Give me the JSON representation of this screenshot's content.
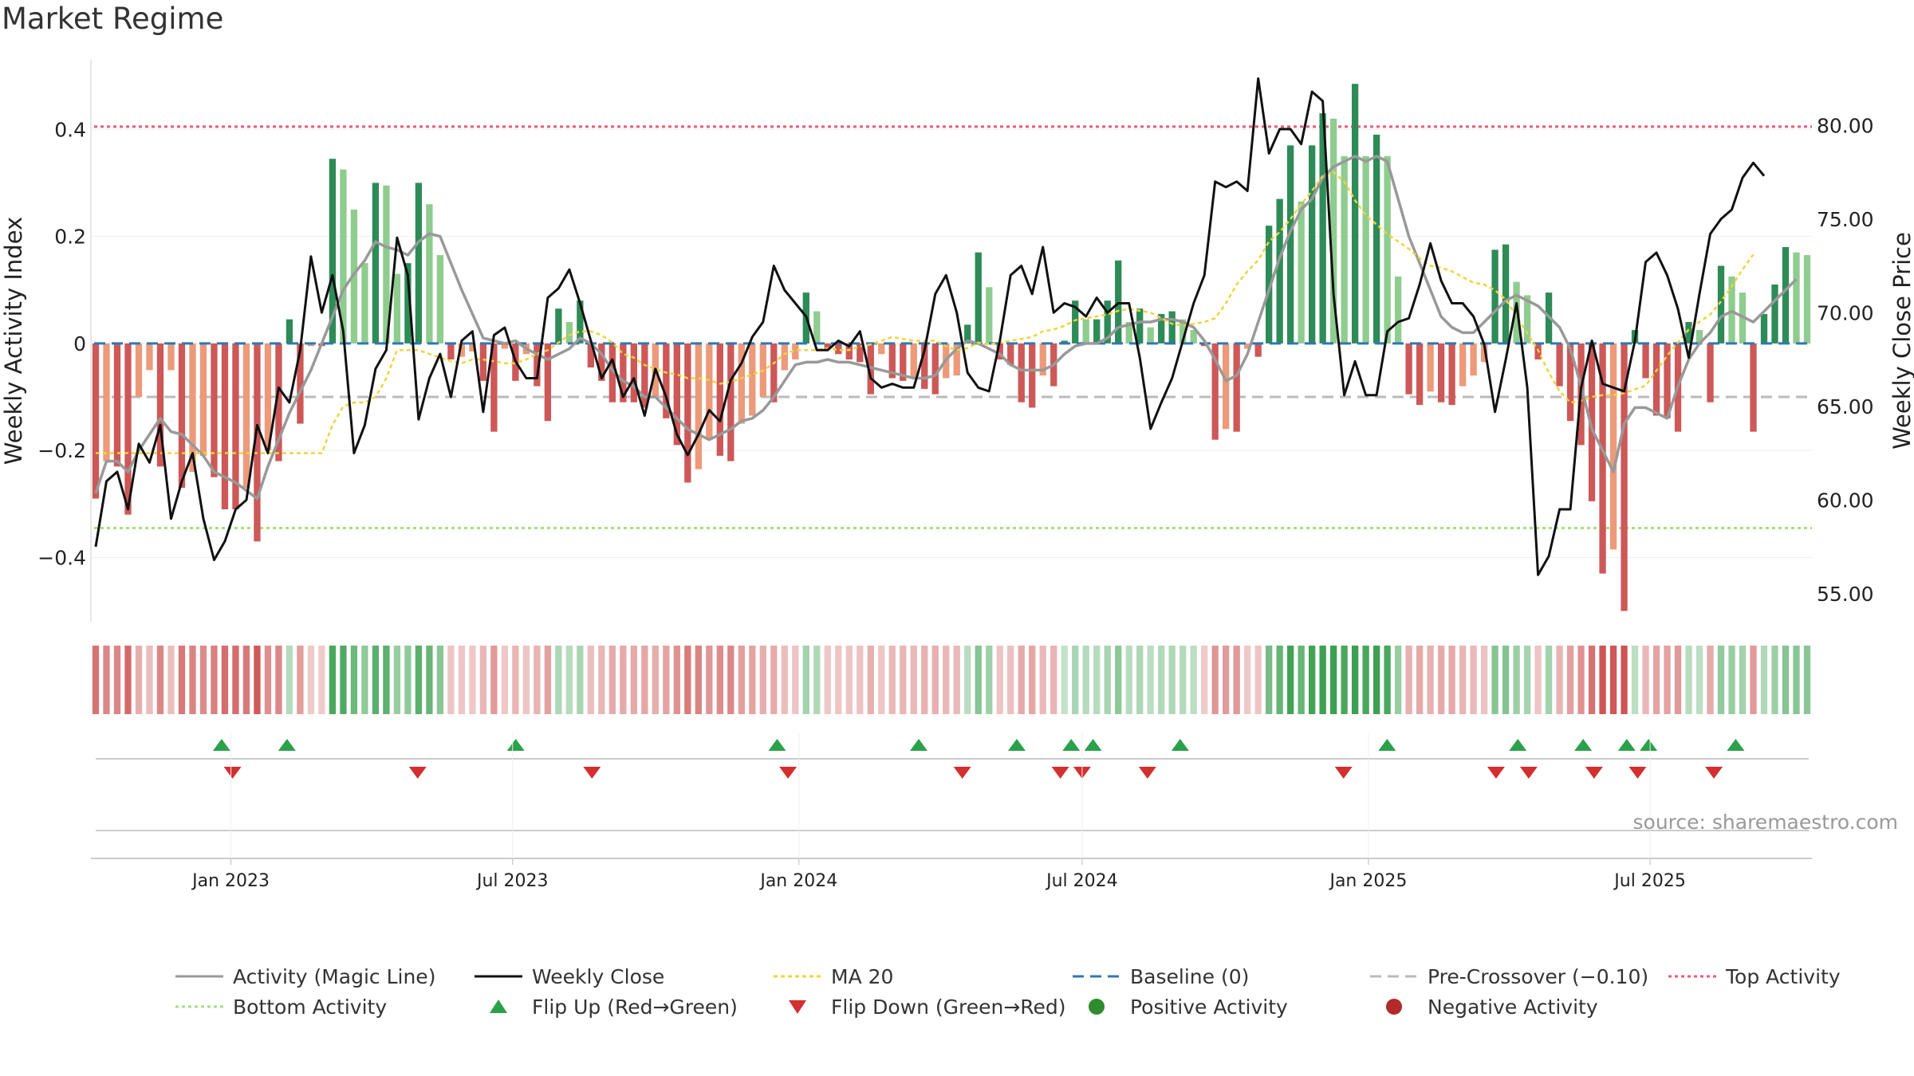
{
  "title": "Market Regime",
  "source": "source: sharemaestro.com",
  "colors": {
    "close": "#111111",
    "magic": "#999999",
    "ma": "#f2d33a",
    "baseline": "#2f78b4",
    "pre": "#bbbbbb",
    "top": "#ec5a78",
    "bottom": "#a8df7c",
    "up_strong": "#2e8b57",
    "up_weak": "#8fcc8f",
    "down_strong": "#cd5858",
    "down_weak": "#ec9a7a",
    "flip_up": "#2aa14a",
    "flip_down": "#d32f2f"
  },
  "chart_data": {
    "type": "bar",
    "title": "Market Regime",
    "ylabel": "Weekly Activity Index",
    "y2label": "Weekly Close Price",
    "ylim": [
      -0.52,
      0.53
    ],
    "y2lim": [
      53.5,
      83.5
    ],
    "yticks": [
      -0.4,
      -0.2,
      0,
      0.2,
      0.4
    ],
    "ytick_labels": [
      "−0.4",
      "−0.2",
      "0",
      "0.2",
      "0.4"
    ],
    "y2ticks": [
      55,
      60,
      65,
      70,
      75,
      80
    ],
    "y2tick_labels": [
      "55.00",
      "60.00",
      "65.00",
      "70.00",
      "75.00",
      "80.00"
    ],
    "x_start": "2022-10-03",
    "x_end": "2025-10-13",
    "xtick_dates": [
      "2023-01-01",
      "2023-07-01",
      "2024-01-01",
      "2024-07-01",
      "2025-01-01",
      "2025-07-01"
    ],
    "xtick_labels": [
      "Jan 2023",
      "Jul 2023",
      "Jan 2024",
      "Jul 2024",
      "Jan 2025",
      "Jul 2025"
    ],
    "levels": {
      "top": 0.405,
      "bottom": -0.345,
      "pre_crossover": -0.1,
      "baseline": 0
    },
    "activity": [
      -0.29,
      -0.22,
      -0.23,
      -0.32,
      -0.1,
      -0.05,
      -0.23,
      -0.05,
      -0.27,
      -0.24,
      -0.21,
      -0.25,
      -0.31,
      -0.31,
      -0.27,
      -0.37,
      -0.2,
      -0.22,
      0.045,
      -0.15,
      -0.005,
      -0.005,
      0.345,
      0.325,
      0.25,
      0.15,
      0.3,
      0.295,
      0.13,
      0.15,
      0.3,
      0.26,
      0.165,
      -0.03,
      -0.025,
      -0.015,
      -0.07,
      -0.165,
      -0.01,
      -0.07,
      -0.02,
      -0.08,
      -0.145,
      0.065,
      0.04,
      0.08,
      -0.045,
      -0.07,
      -0.11,
      -0.11,
      -0.11,
      -0.12,
      -0.1,
      -0.14,
      -0.19,
      -0.26,
      -0.235,
      -0.18,
      -0.21,
      -0.22,
      -0.15,
      -0.135,
      -0.1,
      -0.11,
      -0.05,
      -0.03,
      0.095,
      0.06,
      -0.01,
      -0.02,
      -0.03,
      -0.035,
      -0.095,
      -0.02,
      -0.065,
      -0.07,
      -0.065,
      -0.085,
      -0.095,
      -0.065,
      -0.06,
      0.035,
      0.17,
      0.105,
      -0.03,
      -0.04,
      -0.11,
      -0.12,
      -0.06,
      -0.08,
      0.005,
      0.08,
      0.045,
      0.045,
      0.08,
      0.155,
      0.04,
      0.065,
      0.03,
      0.055,
      0.06,
      0.045,
      0.025,
      -0.005,
      -0.18,
      -0.16,
      -0.165,
      -0.01,
      -0.025,
      0.22,
      0.27,
      0.37,
      0.265,
      0.37,
      0.43,
      0.42,
      0.35,
      0.485,
      0.35,
      0.39,
      0.35,
      0.125,
      -0.095,
      -0.115,
      -0.09,
      -0.11,
      -0.115,
      -0.08,
      -0.06,
      -0.035,
      0.175,
      0.185,
      0.115,
      0.09,
      -0.03,
      0.095,
      -0.08,
      -0.145,
      -0.19,
      -0.295,
      -0.43,
      -0.385,
      -0.5,
      0.025,
      -0.065,
      -0.135,
      -0.14,
      -0.165,
      0.04,
      0.025,
      -0.11,
      0.145,
      0.125,
      0.095,
      -0.165,
      0.055,
      0.11,
      0.18,
      0.17,
      0.165
    ],
    "magic_line": [
      -0.28,
      -0.22,
      -0.22,
      -0.24,
      -0.2,
      -0.17,
      -0.14,
      -0.165,
      -0.17,
      -0.19,
      -0.21,
      -0.24,
      -0.25,
      -0.26,
      -0.275,
      -0.29,
      -0.23,
      -0.18,
      -0.13,
      -0.09,
      -0.05,
      0,
      0.05,
      0.1,
      0.13,
      0.155,
      0.19,
      0.18,
      0.175,
      0.165,
      0.19,
      0.205,
      0.2,
      0.15,
      0.1,
      0.055,
      0.01,
      0.005,
      0,
      0.005,
      -0.01,
      -0.02,
      -0.03,
      -0.02,
      -0.01,
      0.01,
      0,
      -0.02,
      -0.05,
      -0.07,
      -0.08,
      -0.1,
      -0.1,
      -0.12,
      -0.14,
      -0.16,
      -0.17,
      -0.18,
      -0.17,
      -0.16,
      -0.145,
      -0.14,
      -0.125,
      -0.1,
      -0.07,
      -0.04,
      -0.035,
      -0.035,
      -0.03,
      -0.035,
      -0.035,
      -0.04,
      -0.045,
      -0.05,
      -0.055,
      -0.06,
      -0.065,
      -0.065,
      -0.06,
      -0.03,
      -0.01,
      0.005,
      0,
      -0.01,
      -0.02,
      -0.04,
      -0.05,
      -0.05,
      -0.05,
      -0.04,
      -0.02,
      -0.005,
      0,
      0,
      0.01,
      0.03,
      0.035,
      0.04,
      0.04,
      0.045,
      0.045,
      0.04,
      0.03,
      0.005,
      -0.03,
      -0.07,
      -0.06,
      -0.02,
      0.04,
      0.1,
      0.16,
      0.21,
      0.25,
      0.27,
      0.31,
      0.33,
      0.34,
      0.35,
      0.34,
      0.35,
      0.34,
      0.27,
      0.2,
      0.15,
      0.1,
      0.05,
      0.03,
      0.02,
      0.02,
      0.04,
      0.06,
      0.08,
      0.09,
      0.08,
      0.07,
      0.05,
      0.03,
      -0.01,
      -0.08,
      -0.16,
      -0.2,
      -0.24,
      -0.15,
      -0.12,
      -0.12,
      -0.13,
      -0.14,
      -0.08,
      -0.03,
      0,
      0.02,
      0.05,
      0.06,
      0.05,
      0.04,
      0.06,
      0.08,
      0.1,
      0.12
    ],
    "close": [
      57.5,
      61,
      61.5,
      59.5,
      63,
      62,
      64,
      59,
      61,
      62.5,
      59,
      56.8,
      57.8,
      59.5,
      60,
      64,
      62.5,
      66,
      65.2,
      68,
      73,
      70,
      72,
      69,
      62.5,
      64,
      67,
      68,
      74,
      72,
      64.3,
      66.5,
      67.8,
      65.5,
      68.5,
      69,
      64.7,
      68.8,
      69.2,
      67.4,
      66.5,
      66.5,
      70.8,
      71.3,
      72.3,
      70.5,
      68.5,
      66.5,
      67.5,
      65.5,
      66.5,
      64.5,
      67,
      65.5,
      63.5,
      62.4,
      63.5,
      64.8,
      64.2,
      66.4,
      67.3,
      68.7,
      69.5,
      72.5,
      71.2,
      70.5,
      69.8,
      68,
      68,
      68.5,
      68.2,
      69,
      66.5,
      66,
      66.2,
      66,
      66,
      68,
      71,
      72,
      70,
      66.8,
      66,
      65.8,
      68.5,
      72,
      72.5,
      71,
      73.5,
      70,
      70.5,
      70.3,
      69.8,
      70.8,
      70,
      70.5,
      70.5,
      67.6,
      63.8,
      65.2,
      66.5,
      68.5,
      70.5,
      72,
      77,
      76.7,
      77,
      76.5,
      82.5,
      78.5,
      79.8,
      79.8,
      79,
      81.8,
      81.3,
      71,
      65.6,
      67.4,
      65.6,
      65.6,
      69,
      69.5,
      69.7,
      71.5,
      73.7,
      71.7,
      70.5,
      70.5,
      69.8,
      68.3,
      64.7,
      67.5,
      70.5,
      66,
      56,
      57,
      59.5,
      59.5,
      66,
      68.5,
      66.2,
      66,
      65.8,
      68.5,
      72.7,
      73.2,
      72,
      70.2,
      67.6,
      71,
      74.2,
      75,
      75.5,
      77.2,
      78,
      77.3
    ],
    "ma20": [
      62.5,
      62.5,
      62.5,
      62.5,
      62.5,
      62.5,
      62.5,
      62.5,
      62.5,
      62.5,
      62.5,
      62.5,
      62.5,
      62.5,
      62.5,
      62.5,
      62.5,
      62.5,
      62.5,
      62.5,
      62.5,
      62.5,
      64,
      65,
      65.2,
      65.2,
      65.5,
      66.5,
      68,
      68,
      68,
      67.8,
      67.6,
      67.4,
      67.3,
      67.5,
      67.5,
      67.4,
      67.3,
      67.3,
      67.5,
      67.8,
      68,
      68.4,
      68.8,
      69,
      69,
      68.8,
      68.4,
      67.8,
      67.6,
      67.2,
      67,
      66.8,
      66.7,
      66.5,
      66.5,
      66.4,
      66.2,
      66.3,
      66.5,
      66.7,
      66.9,
      67.3,
      67.8,
      68,
      68,
      68,
      68.1,
      68,
      68,
      68.2,
      68.3,
      68.5,
      68.7,
      68.6,
      68.5,
      68.5,
      68.5,
      68.2,
      68,
      68.1,
      68.4,
      68.3,
      68.4,
      68.5,
      68.6,
      68.7,
      69,
      69.1,
      69.3,
      69.6,
      69.7,
      69.8,
      69.9,
      70.1,
      70.2,
      70.1,
      70,
      69.7,
      69.4,
      69.3,
      69.4,
      69.5,
      69.7,
      70.5,
      71.5,
      72.2,
      72.8,
      73.8,
      74.3,
      75,
      75.8,
      76.5,
      77.3,
      77.5,
      77,
      76,
      75.2,
      74.7,
      74.2,
      73.8,
      73.4,
      72.9,
      72.5,
      72.4,
      72.2,
      71.9,
      71.6,
      71.5,
      71.2,
      70.7,
      69.8,
      68.9,
      68,
      66.8,
      65.8,
      65.2,
      65.3,
      65.5,
      65.6,
      65.6,
      65.7,
      65.9,
      66.1,
      66.9,
      67.7,
      68.4,
      69.1,
      69.5,
      69.9,
      70.6,
      71.4,
      72.3,
      73.1
    ],
    "flip_up_dates": [
      "2022-12-26",
      "2023-02-06",
      "2023-07-03",
      "2023-12-18",
      "2024-03-18",
      "2024-05-20",
      "2024-06-24",
      "2024-07-08",
      "2024-09-02",
      "2025-01-13",
      "2025-04-07",
      "2025-05-19",
      "2025-06-16",
      "2025-06-30",
      "2025-08-25"
    ],
    "flip_down_dates": [
      "2023-01-02",
      "2023-05-01",
      "2023-08-21",
      "2023-12-25",
      "2024-04-15",
      "2024-06-17",
      "2024-07-01",
      "2024-08-12",
      "2024-12-16",
      "2025-03-24",
      "2025-04-14",
      "2025-05-26",
      "2025-06-23",
      "2025-08-11"
    ]
  },
  "legend": [
    {
      "label": "Activity (Magic Line)",
      "kind": "line",
      "color": "#999999",
      "dash": ""
    },
    {
      "label": "Weekly Close",
      "kind": "line",
      "color": "#111111",
      "dash": ""
    },
    {
      "label": "MA 20",
      "kind": "line",
      "color": "#f2d33a",
      "dash": "5,4"
    },
    {
      "label": "Baseline (0)",
      "kind": "line",
      "color": "#2f78b4",
      "dash": "14,8"
    },
    {
      "label": "Pre-Crossover (−0.10)",
      "kind": "line",
      "color": "#bbbbbb",
      "dash": "14,8"
    },
    {
      "label": "Top Activity",
      "kind": "line",
      "color": "#ec5a78",
      "dash": "4,4"
    },
    {
      "label": "Bottom Activity",
      "kind": "line",
      "color": "#a8df7c",
      "dash": "4,4"
    },
    {
      "label": "Flip Up (Red→Green)",
      "kind": "tri-up",
      "color": "#2aa14a",
      "dash": ""
    },
    {
      "label": "Flip Down (Green→Red)",
      "kind": "tri-down",
      "color": "#d32f2f",
      "dash": ""
    },
    {
      "label": "Positive Activity",
      "kind": "dot",
      "color": "#2e8b2e",
      "dash": ""
    },
    {
      "label": "Negative Activity",
      "kind": "dot",
      "color": "#b22a2a",
      "dash": ""
    }
  ]
}
